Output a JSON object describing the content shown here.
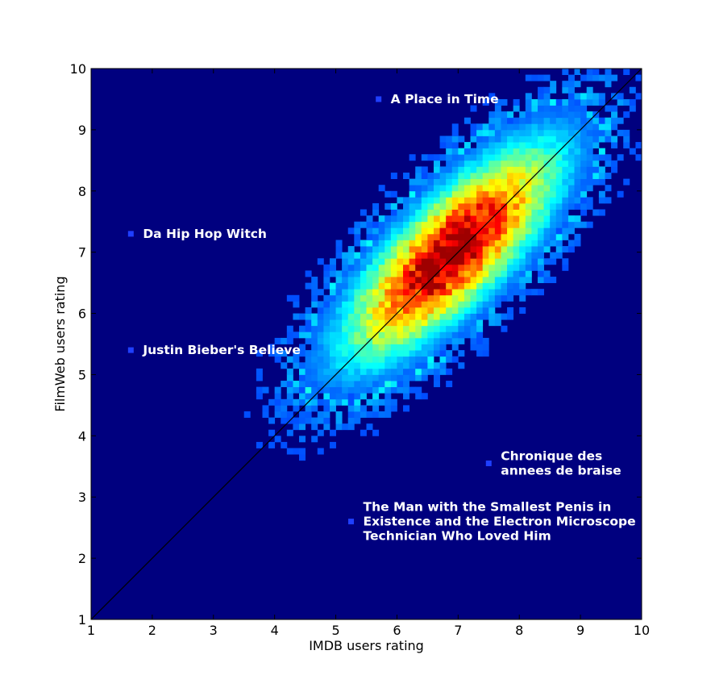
{
  "chart_data": {
    "type": "heatmap",
    "title": "",
    "xlabel": "IMDB users rating",
    "ylabel": "FilmWeb users rating",
    "xlim": [
      1,
      10
    ],
    "ylim": [
      1,
      10
    ],
    "xticks": [
      "1",
      "2",
      "3",
      "4",
      "5",
      "6",
      "7",
      "8",
      "9",
      "10"
    ],
    "yticks": [
      "1",
      "2",
      "3",
      "4",
      "5",
      "6",
      "7",
      "8",
      "9",
      "10"
    ],
    "grid": false,
    "colormap": "jet",
    "background_color": "#00007f",
    "bins": 90,
    "distribution": {
      "center": [
        6.9,
        7.0
      ],
      "correlation_axis": "diagonal",
      "description_note": "2D histogram concentrated along y=x; densest near (7, 7.1)"
    },
    "reference_line": {
      "from": [
        1,
        1
      ],
      "to": [
        10,
        10
      ],
      "color": "#000000"
    },
    "annotations": [
      {
        "text": [
          "A Place in Time"
        ],
        "x": 5.7,
        "y": 9.5
      },
      {
        "text": [
          "Da Hip Hop Witch"
        ],
        "x": 1.65,
        "y": 7.3
      },
      {
        "text": [
          "Justin Bieber's Believe"
        ],
        "x": 1.65,
        "y": 5.4
      },
      {
        "text": [
          "Chronique des",
          "annees de braise"
        ],
        "x": 7.5,
        "y": 3.55
      },
      {
        "text": [
          "The Man with the Smallest Penis in",
          "Existence and the Electron Microscope",
          "Technician Who Loved Him"
        ],
        "x": 5.25,
        "y": 2.6
      }
    ]
  }
}
